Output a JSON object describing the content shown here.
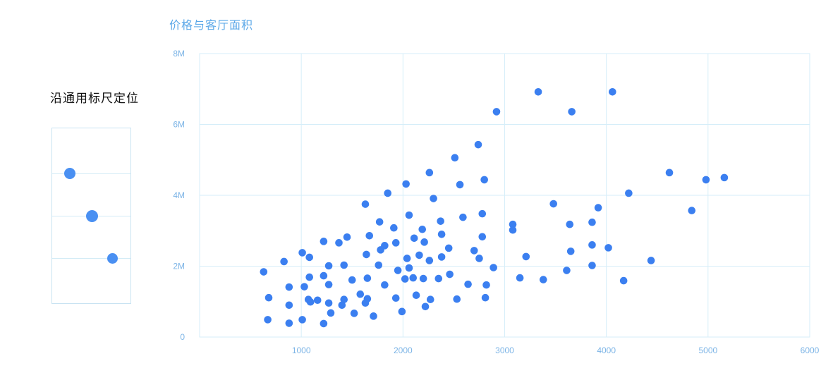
{
  "sidebar": {
    "title": "沿通用标尺定位"
  },
  "colors": {
    "point": "#3b7ff0",
    "legend_point": "#4a90f2",
    "axis_text": "#7cb4e6",
    "grid": "#d6eef9",
    "title": "#5ca8e8"
  },
  "chart_data": {
    "type": "scatter",
    "title": "价格与客厅面积",
    "xlabel": "",
    "ylabel": "",
    "xlim": [
      0,
      6000
    ],
    "ylim": [
      0,
      8000000
    ],
    "x_ticks": [
      1000,
      2000,
      3000,
      4000,
      5000,
      6000
    ],
    "x_tick_labels": [
      "1000",
      "2000",
      "3000",
      "4000",
      "5000",
      "6000"
    ],
    "y_ticks": [
      0,
      2000000,
      4000000,
      6000000,
      8000000
    ],
    "y_tick_labels": [
      "0",
      "2M",
      "4M",
      "6M",
      "8M"
    ],
    "grid": true,
    "legend": "none",
    "series": [
      {
        "points": [
          [
            3330,
            6920000
          ],
          [
            4060,
            6920000
          ],
          [
            2920,
            6360000
          ],
          [
            3660,
            6360000
          ],
          [
            2740,
            5430000
          ],
          [
            2510,
            5060000
          ],
          [
            2260,
            4640000
          ],
          [
            4620,
            4640000
          ],
          [
            5160,
            4500000
          ],
          [
            4980,
            4440000
          ],
          [
            2800,
            4440000
          ],
          [
            2030,
            4320000
          ],
          [
            2560,
            4300000
          ],
          [
            1850,
            4060000
          ],
          [
            4220,
            4060000
          ],
          [
            2300,
            3910000
          ],
          [
            1630,
            3750000
          ],
          [
            3480,
            3760000
          ],
          [
            3920,
            3650000
          ],
          [
            4840,
            3570000
          ],
          [
            2060,
            3440000
          ],
          [
            2780,
            3480000
          ],
          [
            2590,
            3380000
          ],
          [
            1770,
            3250000
          ],
          [
            2370,
            3270000
          ],
          [
            3080,
            3180000
          ],
          [
            3640,
            3180000
          ],
          [
            3860,
            3240000
          ],
          [
            1910,
            3080000
          ],
          [
            2190,
            3040000
          ],
          [
            3080,
            3020000
          ],
          [
            2380,
            2900000
          ],
          [
            1450,
            2820000
          ],
          [
            1670,
            2860000
          ],
          [
            2780,
            2830000
          ],
          [
            2110,
            2790000
          ],
          [
            1220,
            2700000
          ],
          [
            1370,
            2660000
          ],
          [
            1930,
            2660000
          ],
          [
            2210,
            2680000
          ],
          [
            3860,
            2600000
          ],
          [
            1820,
            2580000
          ],
          [
            2450,
            2510000
          ],
          [
            4020,
            2520000
          ],
          [
            1780,
            2460000
          ],
          [
            2700,
            2440000
          ],
          [
            3650,
            2420000
          ],
          [
            1010,
            2380000
          ],
          [
            1640,
            2330000
          ],
          [
            2160,
            2310000
          ],
          [
            2380,
            2260000
          ],
          [
            1080,
            2250000
          ],
          [
            3210,
            2270000
          ],
          [
            2040,
            2220000
          ],
          [
            2750,
            2220000
          ],
          [
            830,
            2130000
          ],
          [
            2260,
            2160000
          ],
          [
            4440,
            2160000
          ],
          [
            1270,
            2010000
          ],
          [
            1420,
            2030000
          ],
          [
            1760,
            2030000
          ],
          [
            2890,
            1960000
          ],
          [
            2060,
            1950000
          ],
          [
            3860,
            2020000
          ],
          [
            1950,
            1880000
          ],
          [
            3610,
            1880000
          ],
          [
            630,
            1840000
          ],
          [
            2460,
            1770000
          ],
          [
            1220,
            1730000
          ],
          [
            1080,
            1690000
          ],
          [
            1650,
            1660000
          ],
          [
            2020,
            1640000
          ],
          [
            2100,
            1670000
          ],
          [
            2200,
            1650000
          ],
          [
            2350,
            1650000
          ],
          [
            3150,
            1670000
          ],
          [
            1500,
            1610000
          ],
          [
            3380,
            1620000
          ],
          [
            4170,
            1590000
          ],
          [
            1270,
            1480000
          ],
          [
            1820,
            1470000
          ],
          [
            2640,
            1490000
          ],
          [
            2820,
            1470000
          ],
          [
            1030,
            1420000
          ],
          [
            880,
            1410000
          ],
          [
            1580,
            1210000
          ],
          [
            2130,
            1180000
          ],
          [
            680,
            1110000
          ],
          [
            1070,
            1060000
          ],
          [
            1160,
            1040000
          ],
          [
            1420,
            1060000
          ],
          [
            1650,
            1080000
          ],
          [
            1930,
            1100000
          ],
          [
            2270,
            1060000
          ],
          [
            2530,
            1070000
          ],
          [
            2810,
            1110000
          ],
          [
            1090,
            990000
          ],
          [
            1270,
            960000
          ],
          [
            1630,
            960000
          ],
          [
            880,
            900000
          ],
          [
            1400,
            900000
          ],
          [
            2220,
            860000
          ],
          [
            1990,
            720000
          ],
          [
            1290,
            680000
          ],
          [
            1520,
            670000
          ],
          [
            1710,
            590000
          ],
          [
            670,
            490000
          ],
          [
            1010,
            490000
          ],
          [
            880,
            390000
          ],
          [
            1220,
            380000
          ]
        ]
      }
    ]
  },
  "legend_demo": {
    "bubbles": [
      {
        "level": 0.47
      },
      {
        "level": 0.7
      },
      {
        "level": 0.93
      }
    ]
  }
}
